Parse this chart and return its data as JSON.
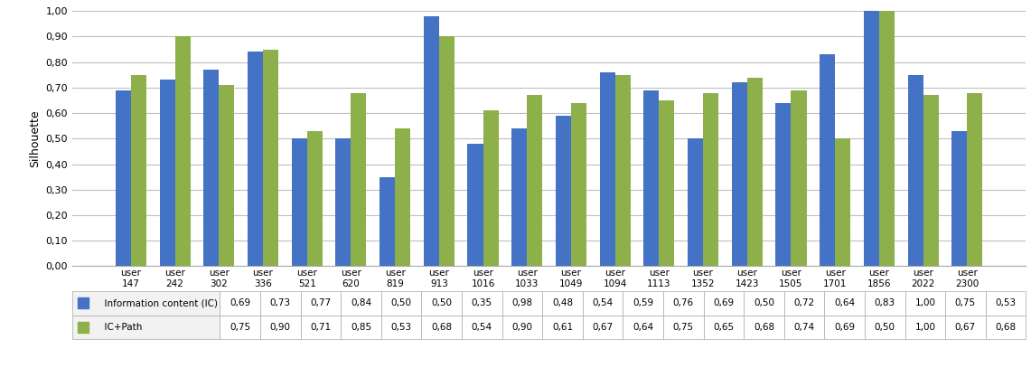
{
  "categories": [
    "user\n147",
    "user\n242",
    "user\n302",
    "user\n336",
    "user\n521",
    "user\n620",
    "user\n819",
    "user\n913",
    "user\n1016",
    "user\n1033",
    "user\n1049",
    "user\n1094",
    "user\n1113",
    "user\n1352",
    "user\n1423",
    "user\n1505",
    "user\n1701",
    "user\n1856",
    "user\n2022",
    "user\n2300"
  ],
  "ic_values": [
    0.69,
    0.73,
    0.77,
    0.84,
    0.5,
    0.5,
    0.35,
    0.98,
    0.48,
    0.54,
    0.59,
    0.76,
    0.69,
    0.5,
    0.72,
    0.64,
    0.83,
    1.0,
    0.75,
    0.53
  ],
  "icpath_values": [
    0.75,
    0.9,
    0.71,
    0.85,
    0.53,
    0.68,
    0.54,
    0.9,
    0.61,
    0.67,
    0.64,
    0.75,
    0.65,
    0.68,
    0.74,
    0.69,
    0.5,
    1.0,
    0.67,
    0.68
  ],
  "ic_color": "#4472C4",
  "icpath_color": "#8DB04A",
  "ylabel": "Silhouette",
  "ylim": [
    0.0,
    1.0
  ],
  "yticks": [
    0.0,
    0.1,
    0.2,
    0.3,
    0.4,
    0.5,
    0.6,
    0.7,
    0.8,
    0.9,
    1.0
  ],
  "legend_ic": "Information content (IC)",
  "legend_icpath": "IC+Path",
  "bar_width": 0.35,
  "background_color": "#FFFFFF",
  "grid_color": "#BFBFBF",
  "table_bg": "#F2F2F2",
  "table_border": "#AAAAAA"
}
